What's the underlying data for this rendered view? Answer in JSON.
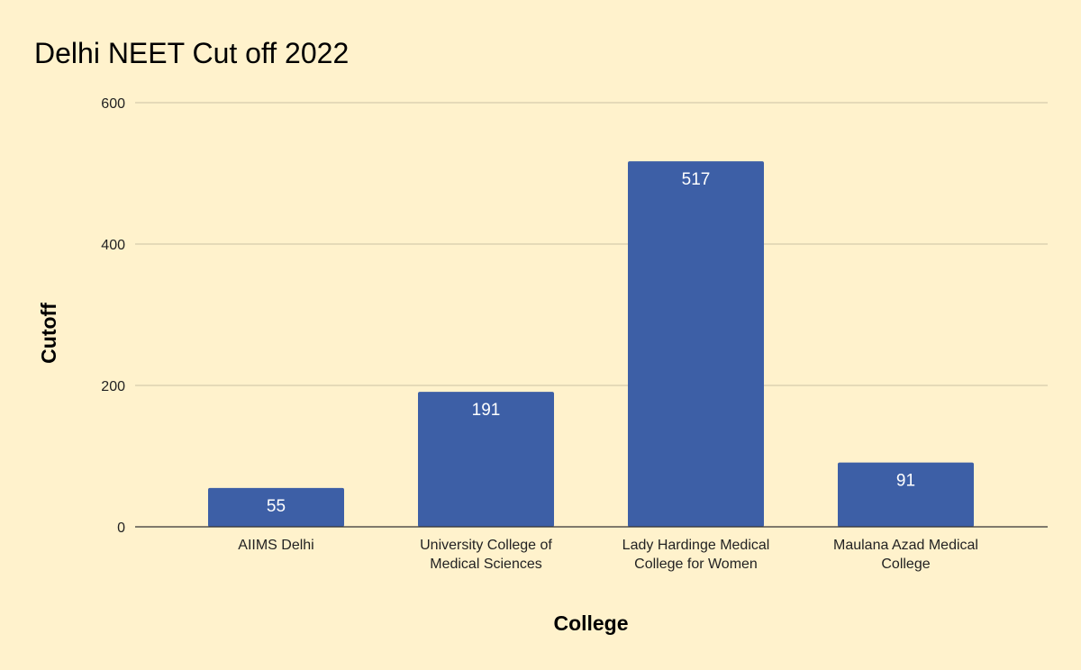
{
  "chart_data": {
    "type": "bar",
    "title": "Delhi NEET Cut off 2022",
    "xlabel": "College",
    "ylabel": "Cutoff",
    "categories": [
      [
        "AIIMS Delhi"
      ],
      [
        "University College of",
        "Medical Sciences"
      ],
      [
        "Lady Hardinge Medical",
        "College for Women"
      ],
      [
        "Maulana Azad Medical",
        "College"
      ]
    ],
    "values": [
      55,
      191,
      517,
      91
    ],
    "ylim": [
      0,
      600
    ],
    "yticks": [
      0,
      200,
      400,
      600
    ],
    "grid": true,
    "legend": "none",
    "colors": {
      "background": "#fff2cc",
      "bar": "#3d5fa6",
      "gridline": "#cbc3a3",
      "baseline": "#333333",
      "data_label": "#ffffff"
    }
  }
}
